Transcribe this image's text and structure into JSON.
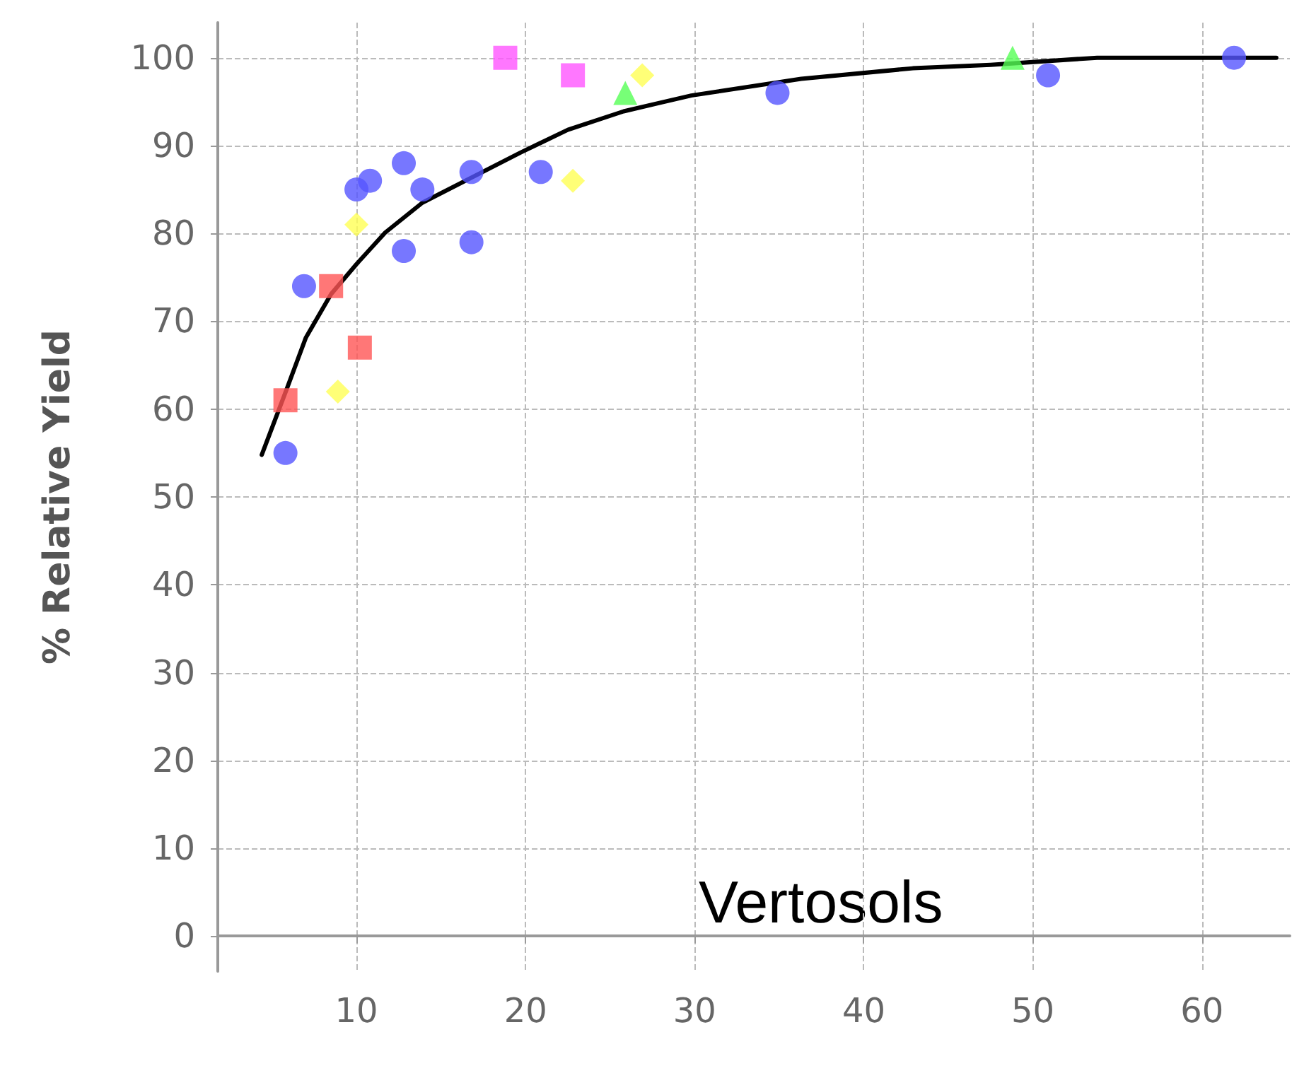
{
  "chart_data": {
    "type": "scatter",
    "ylabel": "% Relative Yield",
    "annotations": [
      "Vertosols"
    ],
    "xlim": [
      1.8,
      65.2
    ],
    "xticks": [
      10,
      20,
      30,
      40,
      50,
      60
    ],
    "ylim": [
      -4,
      104
    ],
    "yticks": [
      0,
      10,
      20,
      30,
      40,
      50,
      60,
      70,
      80,
      90,
      100
    ],
    "grid": true,
    "series": [
      {
        "color": "#5555ff",
        "marker": "circle",
        "x": [
          5.8,
          6.9,
          10.0,
          10.8,
          12.8,
          12.8,
          13.9,
          16.8,
          16.8,
          20.9,
          34.9,
          50.9,
          61.9
        ],
        "values": [
          55,
          74,
          85,
          86,
          88,
          78,
          85,
          87,
          79,
          87,
          96,
          98,
          100
        ]
      },
      {
        "color": "#ff5555",
        "marker": "square",
        "x": [
          5.8,
          8.5,
          10.2
        ],
        "values": [
          61,
          74,
          67
        ]
      },
      {
        "color": "#ffff55",
        "marker": "diamond",
        "x": [
          8.9,
          10.0,
          22.8,
          26.9
        ],
        "values": [
          62,
          81,
          86,
          98
        ]
      },
      {
        "color": "#ff55ff",
        "marker": "square",
        "x": [
          18.8,
          22.8
        ],
        "values": [
          100,
          98
        ]
      },
      {
        "color": "#55ff55",
        "marker": "triangle",
        "x": [
          25.9,
          48.8
        ],
        "values": [
          96,
          100
        ]
      },
      {
        "type": "line",
        "color": "#000000",
        "marker": "none",
        "line_style": "solid",
        "x": [
          4.4,
          5.9,
          7.0,
          8.5,
          10.0,
          11.7,
          13.9,
          19.7,
          22.5,
          25.8,
          28.0,
          29.8,
          36.3,
          42.9,
          47.5,
          53.8,
          64.4
        ],
        "values": [
          54.8,
          62.4,
          68.1,
          73.1,
          76.5,
          80.1,
          83.5,
          89.2,
          91.8,
          93.9,
          94.9,
          95.7,
          97.6,
          98.8,
          99.2,
          100,
          100
        ]
      }
    ]
  }
}
